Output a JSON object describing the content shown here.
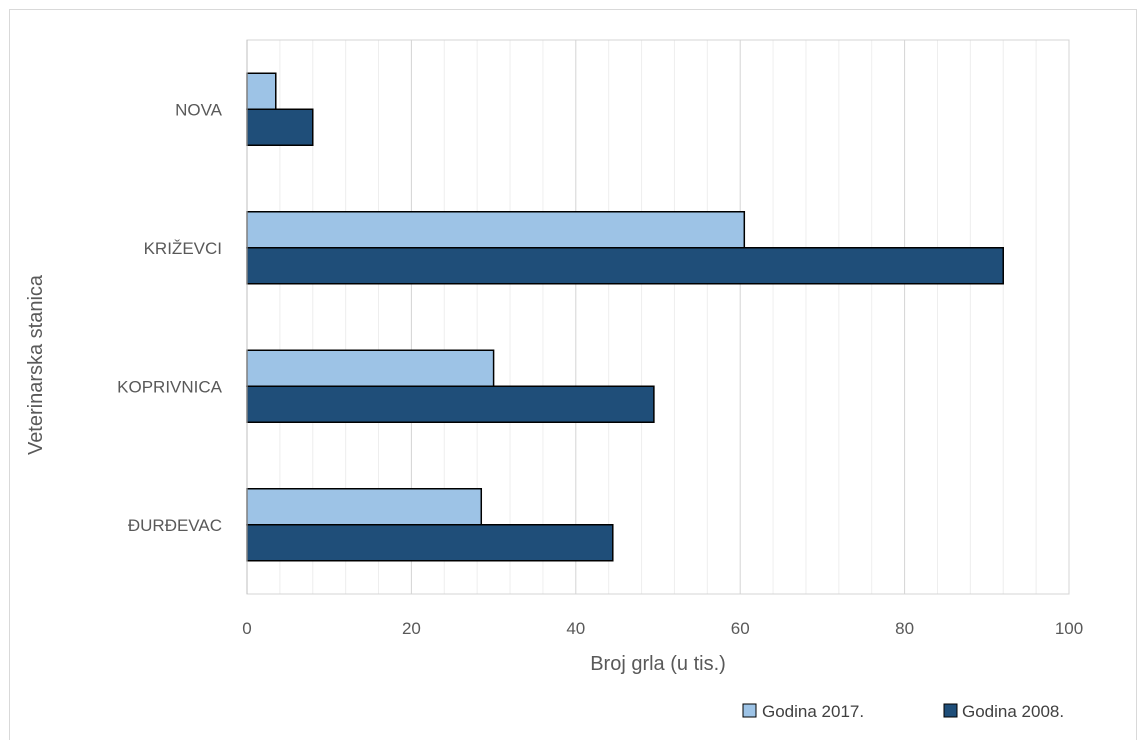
{
  "chart_data": {
    "type": "bar",
    "orientation": "horizontal",
    "categories": [
      "NOVA",
      "KRIŽEVCI",
      "KOPRIVNICA",
      "ĐURĐEVAC"
    ],
    "series": [
      {
        "name": "Godina 2017.",
        "values": [
          3.5,
          60.5,
          30,
          28.5
        ],
        "color": "#9dc3e6"
      },
      {
        "name": "Godina 2008.",
        "values": [
          8,
          92,
          49.5,
          44.5
        ],
        "color": "#1f4e79"
      }
    ],
    "xlabel": "Broj grla (u tis.)",
    "ylabel": "Veterinarska stanica",
    "xlim": [
      0,
      100
    ],
    "x_ticks": [
      0,
      20,
      40,
      60,
      80,
      100
    ],
    "x_tick_labels": [
      "0",
      "20",
      "40",
      "60",
      "80",
      "100"
    ],
    "grid": {
      "major": true,
      "minor": true
    },
    "legend_position": "bottom-right",
    "bar_outline_color": "#000000"
  }
}
